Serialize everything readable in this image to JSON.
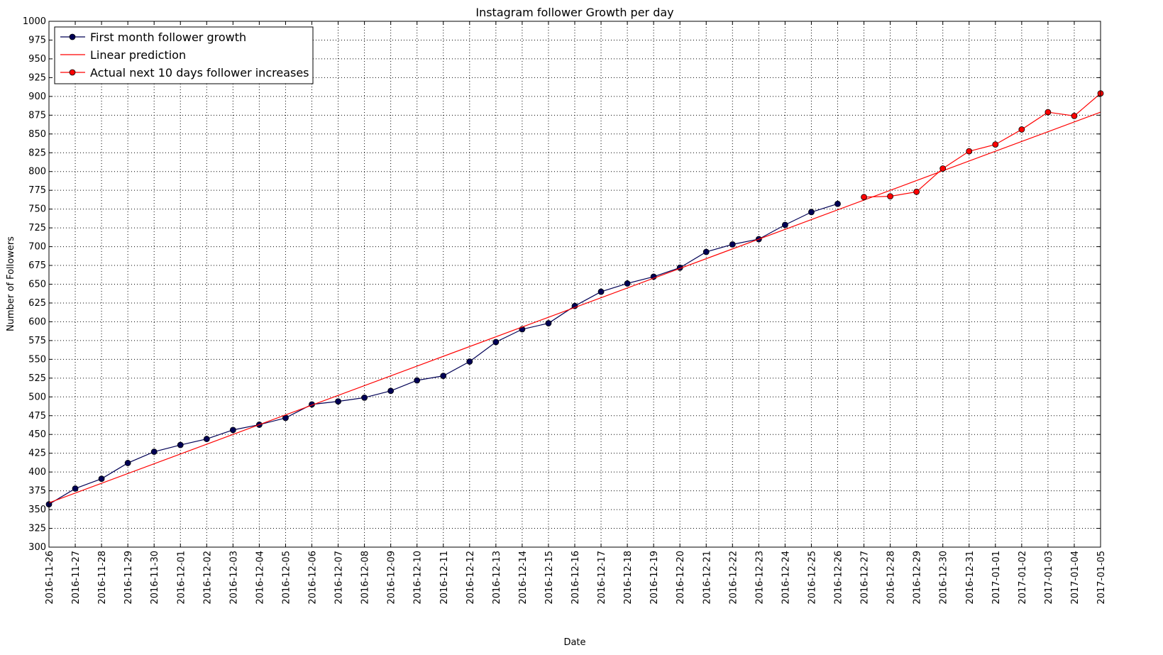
{
  "chart_data": {
    "type": "line",
    "title": "Instagram follower Growth per day",
    "xlabel": "Date",
    "ylabel": "Number of Followers",
    "ylim": [
      300,
      1000
    ],
    "yticks": [
      300,
      325,
      350,
      375,
      400,
      425,
      450,
      475,
      500,
      525,
      550,
      575,
      600,
      625,
      650,
      675,
      700,
      725,
      750,
      775,
      800,
      825,
      850,
      875,
      900,
      925,
      950,
      975,
      1000
    ],
    "categories": [
      "2016-11-26",
      "2016-11-27",
      "2016-11-28",
      "2016-11-29",
      "2016-11-30",
      "2016-12-01",
      "2016-12-02",
      "2016-12-03",
      "2016-12-04",
      "2016-12-05",
      "2016-12-06",
      "2016-12-07",
      "2016-12-08",
      "2016-12-09",
      "2016-12-10",
      "2016-12-11",
      "2016-12-12",
      "2016-12-13",
      "2016-12-14",
      "2016-12-15",
      "2016-12-16",
      "2016-12-17",
      "2016-12-18",
      "2016-12-19",
      "2016-12-20",
      "2016-12-21",
      "2016-12-22",
      "2016-12-23",
      "2016-12-24",
      "2016-12-25",
      "2016-12-26",
      "2016-12-27",
      "2016-12-28",
      "2016-12-29",
      "2016-12-30",
      "2016-12-31",
      "2017-01-01",
      "2017-01-02",
      "2017-01-03",
      "2017-01-04",
      "2017-01-05"
    ],
    "grid": true,
    "legend_position": "top-left",
    "series": [
      {
        "name": "First month follower growth",
        "color": "#000055",
        "marker": "circle",
        "x": [
          "2016-11-26",
          "2016-11-27",
          "2016-11-28",
          "2016-11-29",
          "2016-11-30",
          "2016-12-01",
          "2016-12-02",
          "2016-12-03",
          "2016-12-04",
          "2016-12-05",
          "2016-12-06",
          "2016-12-07",
          "2016-12-08",
          "2016-12-09",
          "2016-12-10",
          "2016-12-11",
          "2016-12-12",
          "2016-12-13",
          "2016-12-14",
          "2016-12-15",
          "2016-12-16",
          "2016-12-17",
          "2016-12-18",
          "2016-12-19",
          "2016-12-20",
          "2016-12-21",
          "2016-12-22",
          "2016-12-23",
          "2016-12-24",
          "2016-12-25",
          "2016-12-26"
        ],
        "values": [
          357,
          378,
          391,
          412,
          427,
          436,
          444,
          456,
          463,
          472,
          490,
          494,
          499,
          508,
          522,
          528,
          547,
          573,
          590,
          598,
          621,
          640,
          651,
          660,
          672,
          693,
          703,
          710,
          729,
          746,
          757
        ]
      },
      {
        "name": "Linear prediction",
        "color": "#ff0000",
        "marker": "none",
        "x": [
          "2016-11-26",
          "2017-01-05"
        ],
        "values": [
          359,
          879
        ]
      },
      {
        "name": "Actual next 10 days follower increases",
        "color": "#ff0000",
        "marker": "circle",
        "x": [
          "2016-12-27",
          "2016-12-28",
          "2016-12-29",
          "2016-12-30",
          "2016-12-31",
          "2017-01-01",
          "2017-01-02",
          "2017-01-03",
          "2017-01-04",
          "2017-01-05"
        ],
        "values": [
          766,
          767,
          773,
          804,
          827,
          836,
          856,
          879,
          874,
          904
        ]
      }
    ]
  }
}
